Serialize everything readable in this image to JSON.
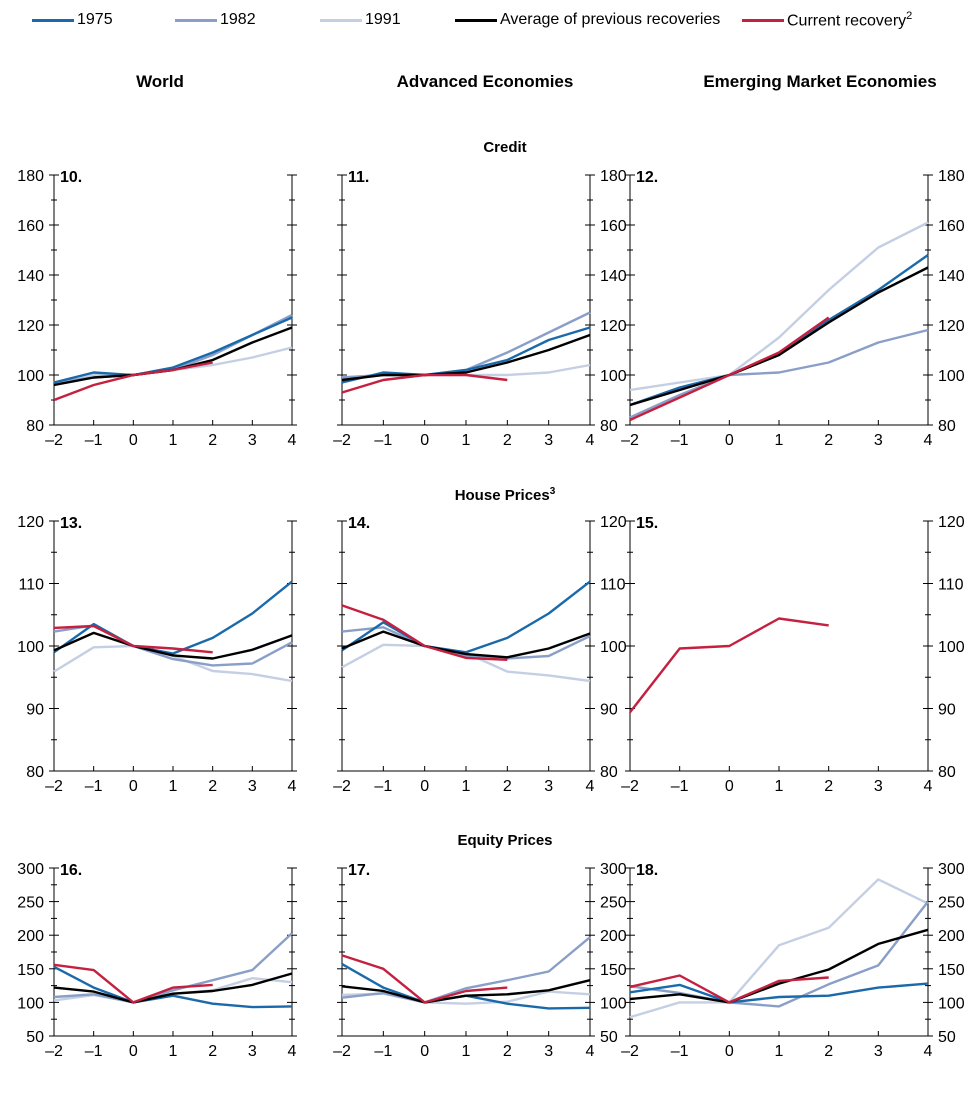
{
  "legend": [
    {
      "label": "1975",
      "color": "#1a6aab"
    },
    {
      "label": "1982",
      "color": "#8a9fc8"
    },
    {
      "label": "1991",
      "color": "#c5cfe4"
    },
    {
      "label": "Average of previous recoveries",
      "color": "#000000"
    },
    {
      "label": "Current recovery",
      "sup": "2",
      "color": "#c4203f"
    }
  ],
  "columns": [
    "World",
    "Advanced Economies",
    "Emerging Market Economies"
  ],
  "rows": [
    {
      "title": "Credit",
      "sup": ""
    },
    {
      "title": "House Prices",
      "sup": "3"
    },
    {
      "title": "Equity Prices",
      "sup": ""
    }
  ],
  "chart_data": [
    {
      "type": "line",
      "panel": "10.",
      "row": "Credit",
      "column": "World",
      "x": [
        -2,
        -1,
        0,
        1,
        2,
        3,
        4
      ],
      "ylim": [
        80,
        180
      ],
      "yticks": [
        80,
        100,
        120,
        140,
        160,
        180
      ],
      "series": [
        {
          "name": "1975",
          "values": [
            97,
            101,
            100,
            103,
            109,
            116,
            123
          ]
        },
        {
          "name": "1982",
          "values": [
            97,
            99,
            100,
            102,
            108,
            116,
            124
          ]
        },
        {
          "name": "1991",
          "values": [
            97,
            100,
            100,
            102,
            104,
            107,
            111
          ]
        },
        {
          "name": "Average of previous recoveries",
          "values": [
            96,
            99,
            100,
            102,
            106,
            113,
            119
          ]
        },
        {
          "name": "Current recovery",
          "values": [
            90,
            96,
            100,
            102,
            105,
            null,
            null
          ]
        }
      ]
    },
    {
      "type": "line",
      "panel": "11.",
      "row": "Credit",
      "column": "Advanced Economies",
      "x": [
        -2,
        -1,
        0,
        1,
        2,
        3,
        4
      ],
      "ylim": [
        80,
        180
      ],
      "yticks": [
        80,
        100,
        120,
        140,
        160,
        180
      ],
      "series": [
        {
          "name": "1975",
          "values": [
            97,
            101,
            100,
            102,
            106,
            114,
            119
          ]
        },
        {
          "name": "1982",
          "values": [
            99,
            100,
            100,
            102,
            109,
            117,
            125
          ]
        },
        {
          "name": "1991",
          "values": [
            99,
            100,
            100,
            100,
            100,
            101,
            104
          ]
        },
        {
          "name": "Average of previous recoveries",
          "values": [
            98,
            100,
            100,
            101,
            105,
            110,
            116
          ]
        },
        {
          "name": "Current recovery",
          "values": [
            93,
            98,
            100,
            100,
            98,
            null,
            null
          ]
        }
      ]
    },
    {
      "type": "line",
      "panel": "12.",
      "row": "Credit",
      "column": "Emerging Market Economies",
      "x": [
        -2,
        -1,
        0,
        1,
        2,
        3,
        4
      ],
      "ylim": [
        80,
        180
      ],
      "yticks": [
        80,
        100,
        120,
        140,
        160,
        180
      ],
      "series": [
        {
          "name": "1975",
          "values": [
            88,
            95,
            100,
            108,
            122,
            134,
            148
          ]
        },
        {
          "name": "1982",
          "values": [
            83,
            92,
            100,
            101,
            105,
            113,
            118
          ]
        },
        {
          "name": "1991",
          "values": [
            94,
            97,
            100,
            115,
            134,
            151,
            161
          ]
        },
        {
          "name": "Average of previous recoveries",
          "values": [
            88,
            94,
            100,
            108,
            121,
            133,
            143
          ]
        },
        {
          "name": "Current recovery",
          "values": [
            82,
            91,
            100,
            109,
            123,
            null,
            null
          ]
        }
      ]
    },
    {
      "type": "line",
      "panel": "13.",
      "row": "House Prices",
      "column": "World",
      "x": [
        -2,
        -1,
        0,
        1,
        2,
        3,
        4
      ],
      "ylim": [
        80,
        120
      ],
      "yticks": [
        80,
        90,
        100,
        110,
        120
      ],
      "series": [
        {
          "name": "1975",
          "values": [
            99,
            103.5,
            100,
            98.8,
            101.3,
            105.2,
            110.3
          ]
        },
        {
          "name": "1982",
          "values": [
            102.3,
            103.3,
            100,
            97.9,
            96.9,
            97.2,
            100.6
          ]
        },
        {
          "name": "1991",
          "values": [
            95.9,
            99.8,
            100,
            98.4,
            96,
            95.5,
            94.4
          ]
        },
        {
          "name": "Average of previous recoveries",
          "values": [
            99.3,
            102.1,
            100,
            98.5,
            98,
            99.4,
            101.7
          ]
        },
        {
          "name": "Current recovery",
          "values": [
            102.9,
            103.2,
            100,
            99.6,
            99,
            null,
            null
          ]
        }
      ]
    },
    {
      "type": "line",
      "panel": "14.",
      "row": "House Prices",
      "column": "Advanced Economies",
      "x": [
        -2,
        -1,
        0,
        1,
        2,
        3,
        4
      ],
      "ylim": [
        80,
        120
      ],
      "yticks": [
        80,
        90,
        100,
        110,
        120
      ],
      "series": [
        {
          "name": "1975",
          "values": [
            99.3,
            103.8,
            100,
            99,
            101.3,
            105.2,
            110.3
          ]
        },
        {
          "name": "1982",
          "values": [
            102.3,
            103,
            100,
            98.4,
            98,
            98.4,
            101.6
          ]
        },
        {
          "name": "1991",
          "values": [
            96.6,
            100.2,
            100,
            98.9,
            95.9,
            95.3,
            94.4
          ]
        },
        {
          "name": "Average of previous recoveries",
          "values": [
            99.6,
            102.3,
            100,
            98.7,
            98.2,
            99.6,
            102
          ]
        },
        {
          "name": "Current recovery",
          "values": [
            106.5,
            104.2,
            100,
            98.1,
            97.8,
            null,
            null
          ]
        }
      ]
    },
    {
      "type": "line",
      "panel": "15.",
      "row": "House Prices",
      "column": "Emerging Market Economies",
      "x": [
        -2,
        -1,
        0,
        1,
        2,
        3,
        4
      ],
      "ylim": [
        80,
        120
      ],
      "yticks": [
        80,
        90,
        100,
        110,
        120
      ],
      "series": [
        {
          "name": "Current recovery",
          "values": [
            89.4,
            99.6,
            100,
            104.4,
            103.3,
            null,
            null
          ]
        }
      ]
    },
    {
      "type": "line",
      "panel": "16.",
      "row": "Equity Prices",
      "column": "World",
      "x": [
        -2,
        -1,
        0,
        1,
        2,
        3,
        4
      ],
      "ylim": [
        50,
        300
      ],
      "yticks": [
        50,
        100,
        150,
        200,
        250,
        300
      ],
      "series": [
        {
          "name": "1975",
          "values": [
            153,
            122,
            100,
            110,
            98,
            93,
            94
          ]
        },
        {
          "name": "1982",
          "values": [
            108,
            112,
            100,
            118,
            133,
            148,
            203
          ]
        },
        {
          "name": "1991",
          "values": [
            103,
            111,
            100,
            113,
            118,
            136,
            130
          ]
        },
        {
          "name": "Average of previous recoveries",
          "values": [
            122,
            116,
            100,
            113,
            117,
            126,
            143
          ]
        },
        {
          "name": "Current recovery",
          "values": [
            156,
            148,
            100,
            122,
            126,
            null,
            null
          ]
        }
      ]
    },
    {
      "type": "line",
      "panel": "17.",
      "row": "Equity Prices",
      "column": "Advanced Economies",
      "x": [
        -2,
        -1,
        0,
        1,
        2,
        3,
        4
      ],
      "ylim": [
        50,
        300
      ],
      "yticks": [
        50,
        100,
        150,
        200,
        250,
        300
      ],
      "series": [
        {
          "name": "1975",
          "values": [
            157,
            122,
            100,
            110,
            98,
            91,
            92
          ]
        },
        {
          "name": "1982",
          "values": [
            107,
            114,
            100,
            121,
            133,
            146,
            197
          ]
        },
        {
          "name": "1991",
          "values": [
            111,
            113,
            100,
            98,
            101,
            116,
            112
          ]
        },
        {
          "name": "Average of previous recoveries",
          "values": [
            124,
            117,
            100,
            110,
            112,
            118,
            133
          ]
        },
        {
          "name": "Current recovery",
          "values": [
            170,
            150,
            100,
            117,
            122,
            null,
            null
          ]
        }
      ]
    },
    {
      "type": "line",
      "panel": "18.",
      "row": "Equity Prices",
      "column": "Emerging Market Economies",
      "x": [
        -2,
        -1,
        0,
        1,
        2,
        3,
        4
      ],
      "ylim": [
        50,
        300
      ],
      "yticks": [
        50,
        100,
        150,
        200,
        250,
        300
      ],
      "series": [
        {
          "name": "1975",
          "values": [
            115,
            126,
            100,
            108,
            110,
            122,
            128
          ]
        },
        {
          "name": "1982",
          "values": [
            124,
            114,
            100,
            94,
            127,
            155,
            250
          ]
        },
        {
          "name": "1991",
          "values": [
            78,
            100,
            100,
            185,
            211,
            283,
            247
          ]
        },
        {
          "name": "Average of previous recoveries",
          "values": [
            105,
            112,
            100,
            128,
            149,
            187,
            208
          ]
        },
        {
          "name": "Current recovery",
          "values": [
            123,
            140,
            100,
            132,
            137,
            null,
            null
          ]
        }
      ]
    }
  ]
}
